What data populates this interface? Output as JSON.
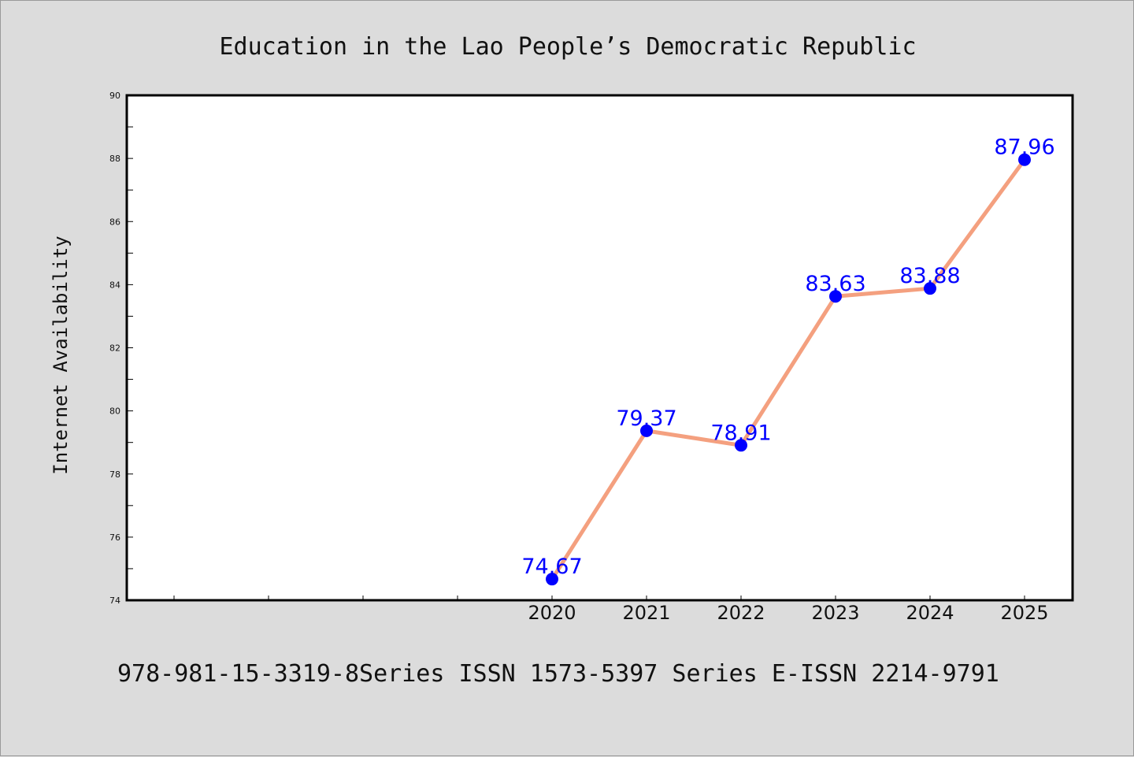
{
  "chart_data": {
    "type": "line",
    "title": "Education in the Lao People’s Democratic Republic",
    "ylabel": "Internet Availability",
    "xlabel": "",
    "categories": [
      "2020",
      "2021",
      "2022",
      "2023",
      "2024",
      "2025"
    ],
    "series": [
      {
        "values": [
          74.67,
          79.37,
          78.91,
          83.63,
          83.88,
          87.96
        ]
      }
    ],
    "data_labels": [
      "74.67",
      "79.37",
      "78.91",
      "83.63",
      "83.88",
      "87.96"
    ],
    "ylim": [
      74,
      90
    ],
    "yticks": [
      "74",
      "76",
      "78",
      "80",
      "82",
      "84",
      "86",
      "88",
      "90"
    ],
    "grid": false,
    "legend": "none",
    "colors": {
      "line": "#f4a07f",
      "marker": "#0000ff",
      "label": "#0000ff",
      "background": "#dcdcdc",
      "plot_area": "#ffffff"
    }
  },
  "caption": "978-981-15-3319-8Series ISSN 1573-5397 Series E-ISSN 2214-9791"
}
